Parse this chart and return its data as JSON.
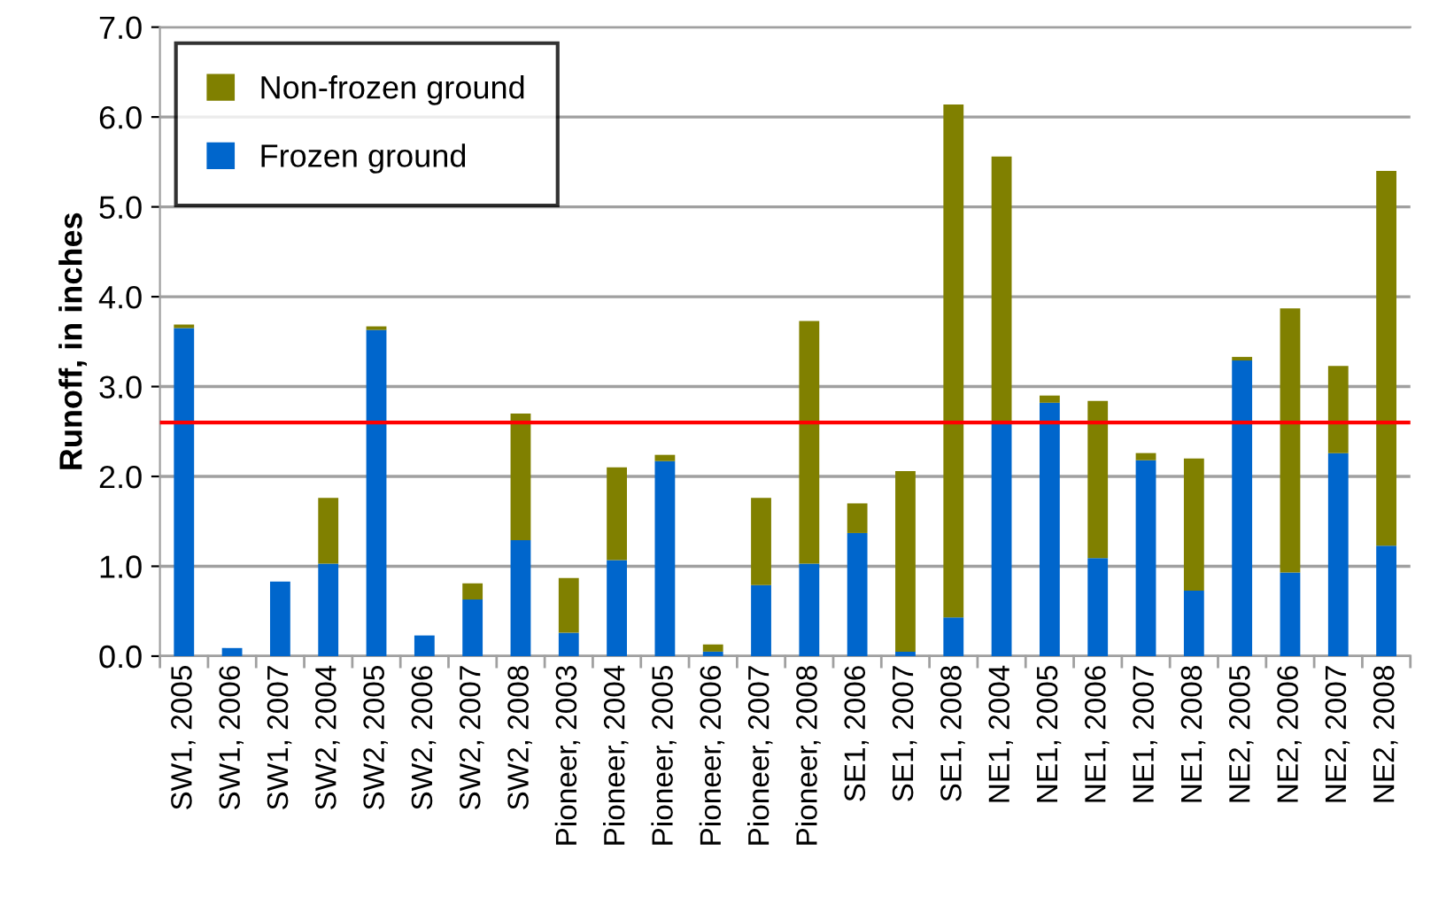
{
  "chart_data": {
    "type": "bar",
    "stacked": true,
    "ylabel": "Runoff, in inches",
    "categories": [
      "SW1, 2005",
      "SW1, 2006",
      "SW1, 2007",
      "SW2, 2004",
      "SW2, 2005",
      "SW2, 2006",
      "SW2, 2007",
      "SW2, 2008",
      "Pioneer, 2003",
      "Pioneer, 2004",
      "Pioneer, 2005",
      "Pioneer, 2006",
      "Pioneer, 2007",
      "Pioneer, 2008",
      "SE1, 2006",
      "SE1, 2007",
      "SE1, 2008",
      "NE1, 2004",
      "NE1, 2005",
      "NE1, 2006",
      "NE1, 2007",
      "NE1, 2008",
      "NE2, 2005",
      "NE2, 2006",
      "NE2, 2007",
      "NE2, 2008"
    ],
    "series": [
      {
        "name": "Frozen ground",
        "color": "#0066cc",
        "values": [
          3.65,
          0.09,
          0.83,
          1.03,
          3.63,
          0.23,
          0.63,
          1.29,
          0.26,
          1.07,
          2.17,
          0.05,
          0.79,
          1.03,
          1.37,
          0.05,
          0.43,
          2.62,
          2.82,
          1.09,
          2.18,
          0.73,
          3.29,
          0.93,
          2.26,
          1.23
        ]
      },
      {
        "name": "Non-frozen ground",
        "color": "#808000",
        "values": [
          0.04,
          null,
          null,
          0.73,
          0.04,
          null,
          0.18,
          1.41,
          0.61,
          1.03,
          0.07,
          0.08,
          0.97,
          2.7,
          0.33,
          2.01,
          5.71,
          2.94,
          0.08,
          1.75,
          0.08,
          1.47,
          0.04,
          2.94,
          0.97,
          4.17
        ]
      }
    ],
    "ylim": [
      0,
      7
    ],
    "yticks": [
      {
        "value": 0,
        "label": "0.0"
      },
      {
        "value": 1,
        "label": "1.0"
      },
      {
        "value": 2,
        "label": "2.0"
      },
      {
        "value": 3,
        "label": "3.0"
      },
      {
        "value": 4,
        "label": "4.0"
      },
      {
        "value": 5,
        "label": "5.0"
      },
      {
        "value": 6,
        "label": "6.0"
      },
      {
        "value": 7,
        "label": "7.0"
      }
    ],
    "ref_lines": [
      {
        "axis": "y",
        "value": 2.6,
        "color": "#ff0000"
      }
    ],
    "grid": "y",
    "legend": "top left"
  }
}
